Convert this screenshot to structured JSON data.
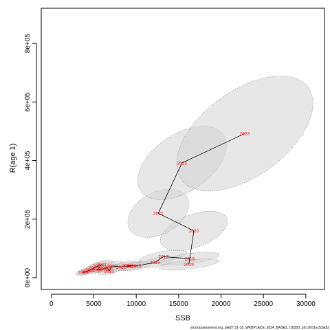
{
  "chart_data": {
    "type": "scatter",
    "xlabel": "SSB",
    "ylabel": "R(age 1)",
    "xlim": [
      -1200,
      32200
    ],
    "ylim": [
      -40000,
      920000
    ],
    "x_ticks": [
      0,
      5000,
      10000,
      15000,
      20000,
      25000,
      30000
    ],
    "x_tick_labels": [
      "0",
      "5000",
      "10000",
      "15000",
      "20000",
      "25000",
      "30000"
    ],
    "y_ticks": [
      0,
      200000,
      400000,
      600000,
      800000
    ],
    "y_tick_labels": [
      "0e+00",
      "2e+05",
      "4e+05",
      "6e+05",
      "8e+05"
    ],
    "grid": false,
    "line_color": "#000000",
    "label_color": "#ff0000",
    "ellipse_fill": "#d3d3d3",
    "ellipse_stroke": "#8c8c8c",
    "footer": "stockassessment.org, pile27.21-32_WKBPLACE_2024_BASE2, r18350, git:c9c61ec53a0d",
    "points": [
      {
        "label": "2005",
        "x": 3700,
        "y": 18000,
        "ex": 800,
        "ey": 10000
      },
      {
        "label": "2004",
        "x": 4200,
        "y": 22000,
        "ex": 900,
        "ey": 12000
      },
      {
        "label": "2006",
        "x": 4600,
        "y": 27000,
        "ex": 1000,
        "ey": 14000
      },
      {
        "label": "2003",
        "x": 5000,
        "y": 33000,
        "ex": 1100,
        "ey": 15000
      },
      {
        "label": "2002",
        "x": 5500,
        "y": 40000,
        "ex": 1200,
        "ey": 16000
      },
      {
        "label": "2001",
        "x": 5900,
        "y": 45000,
        "ex": 1300,
        "ey": 17000
      },
      {
        "label": "2007",
        "x": 5400,
        "y": 26000,
        "ex": 1100,
        "ey": 13000
      },
      {
        "label": "2008",
        "x": 6100,
        "y": 30000,
        "ex": 1200,
        "ey": 14000
      },
      {
        "label": "2009",
        "x": 6600,
        "y": 35000,
        "ex": 1300,
        "ey": 15000
      },
      {
        "label": "2010",
        "x": 6800,
        "y": 22000,
        "ex": 1300,
        "ey": 12000
      },
      {
        "label": "2011",
        "x": 7100,
        "y": 40000,
        "ex": 1400,
        "ey": 18000
      },
      {
        "label": "2012",
        "x": 8200,
        "y": 37000,
        "ex": 1500,
        "ey": 15000
      },
      {
        "label": "2013",
        "x": 9400,
        "y": 39000,
        "ex": 1600,
        "ey": 16000
      },
      {
        "label": "2014",
        "x": 8900,
        "y": 42000,
        "ex": 1700,
        "ey": 17000
      },
      {
        "label": "2015",
        "x": 10000,
        "y": 40000,
        "ex": 1800,
        "ey": 16000
      },
      {
        "label": "2016",
        "x": 12200,
        "y": 52000,
        "ex": 2200,
        "ey": 20000
      },
      {
        "label": "2017",
        "x": 13200,
        "y": 72000,
        "ex": 2800,
        "ey": 24000
      },
      {
        "label": "2018",
        "x": 16300,
        "y": 65000,
        "ex": 3500,
        "ey": 23000
      },
      {
        "label": "2019",
        "x": 16200,
        "y": 45000,
        "ex": 3500,
        "ey": 20000
      },
      {
        "label": "2020",
        "x": 16800,
        "y": 160000,
        "ex": 3900,
        "ey": 75000
      },
      {
        "label": "2021",
        "x": 12600,
        "y": 220000,
        "ex": 3300,
        "ey": 105000
      },
      {
        "label": "2022",
        "x": 15400,
        "y": 392000,
        "ex": 4500,
        "ey": 200000
      },
      {
        "label": "2023",
        "x": 22800,
        "y": 492000,
        "ex": 6700,
        "ey": 335000
      }
    ]
  }
}
